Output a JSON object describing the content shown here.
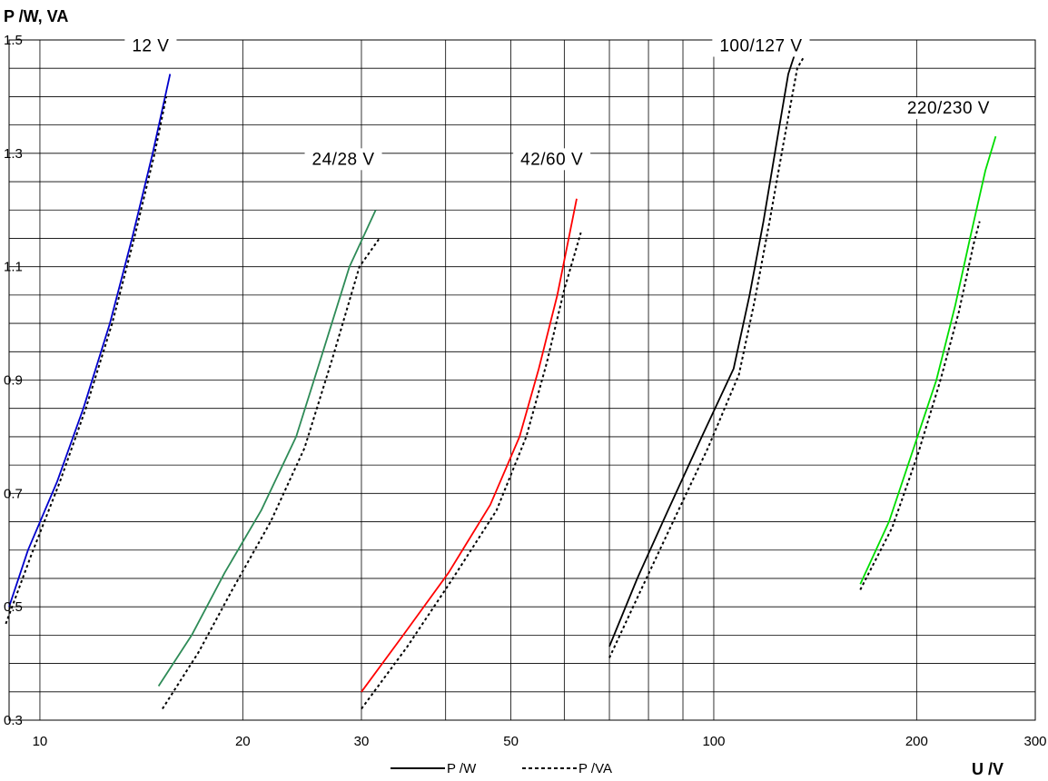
{
  "chart_data": {
    "type": "line",
    "xlabel": "U /V",
    "ylabel": "P /W, VA",
    "x_scale": "log",
    "xlim": [
      9,
      300
    ],
    "ylim": [
      0.3,
      1.5
    ],
    "x_ticks": [
      10,
      20,
      30,
      50,
      100,
      200,
      300
    ],
    "x_tick_labels": [
      "10",
      "20",
      "30",
      "50",
      "100",
      "200",
      "300"
    ],
    "x_minor_grid": [
      40,
      60,
      70,
      80,
      90
    ],
    "y_ticks": [
      0.3,
      0.5,
      0.7,
      0.9,
      1.1,
      1.3,
      1.5
    ],
    "y_tick_labels": [
      "0.3",
      "0.5",
      "0.7",
      "0.9",
      "1.1",
      "1.3",
      "1.5"
    ],
    "y_minor_step": 0.05,
    "grid": true,
    "legend": {
      "position": "bottom-center",
      "entries": [
        {
          "label": "P /W",
          "style": "solid"
        },
        {
          "label": "P /VA",
          "style": "dotted"
        }
      ]
    },
    "groups": [
      {
        "label": "12 V",
        "color": "#0000cc",
        "series": [
          {
            "quantity": "P /W",
            "style": "solid",
            "points": [
              [
                9.0,
                0.5
              ],
              [
                9.6,
                0.6
              ],
              [
                10.6,
                0.72
              ],
              [
                11.6,
                0.85
              ],
              [
                12.7,
                1.0
              ],
              [
                13.7,
                1.15
              ],
              [
                14.7,
                1.3
              ],
              [
                15.6,
                1.44
              ]
            ]
          },
          {
            "quantity": "P /VA",
            "style": "dotted",
            "points": [
              [
                8.9,
                0.47
              ],
              [
                9.7,
                0.59
              ],
              [
                10.7,
                0.72
              ],
              [
                11.7,
                0.85
              ],
              [
                12.8,
                1.0
              ],
              [
                13.8,
                1.15
              ],
              [
                14.8,
                1.3
              ],
              [
                15.4,
                1.4
              ]
            ]
          }
        ]
      },
      {
        "label": "24/28 V",
        "color": "#2e8b57",
        "series": [
          {
            "quantity": "P /W",
            "style": "solid",
            "points": [
              [
                15.0,
                0.36
              ],
              [
                16.8,
                0.45
              ],
              [
                18.8,
                0.56
              ],
              [
                21.3,
                0.67
              ],
              [
                24.0,
                0.8
              ],
              [
                26.3,
                0.95
              ],
              [
                28.8,
                1.1
              ],
              [
                31.5,
                1.2
              ]
            ]
          },
          {
            "quantity": "P /VA",
            "style": "dotted",
            "points": [
              [
                15.2,
                0.32
              ],
              [
                17.2,
                0.42
              ],
              [
                19.3,
                0.53
              ],
              [
                22.0,
                0.65
              ],
              [
                24.7,
                0.78
              ],
              [
                27.2,
                0.94
              ],
              [
                29.8,
                1.1
              ],
              [
                31.9,
                1.15
              ]
            ]
          }
        ]
      },
      {
        "label": "42/60 V",
        "color": "#ff0000",
        "series": [
          {
            "quantity": "P /W",
            "style": "solid",
            "points": [
              [
                30.0,
                0.35
              ],
              [
                34.6,
                0.45
              ],
              [
                40.4,
                0.56
              ],
              [
                46.6,
                0.68
              ],
              [
                51.5,
                0.8
              ],
              [
                55.0,
                0.92
              ],
              [
                58.6,
                1.05
              ],
              [
                62.6,
                1.22
              ]
            ]
          },
          {
            "quantity": "P /VA",
            "style": "dotted",
            "points": [
              [
                30.0,
                0.32
              ],
              [
                35.1,
                0.43
              ],
              [
                41.0,
                0.55
              ],
              [
                47.6,
                0.67
              ],
              [
                52.7,
                0.8
              ],
              [
                56.5,
                0.93
              ],
              [
                60.0,
                1.06
              ],
              [
                63.5,
                1.16
              ]
            ]
          }
        ]
      },
      {
        "label": "100/127 V",
        "color": "#000000",
        "series": [
          {
            "quantity": "P /W",
            "style": "solid",
            "points": [
              [
                70.0,
                0.43
              ],
              [
                77.0,
                0.55
              ],
              [
                85.5,
                0.67
              ],
              [
                96.0,
                0.8
              ],
              [
                107.0,
                0.92
              ],
              [
                113.0,
                1.05
              ],
              [
                118.5,
                1.18
              ],
              [
                124.0,
                1.32
              ],
              [
                129.0,
                1.44
              ],
              [
                134.0,
                1.5
              ]
            ]
          },
          {
            "quantity": "P /VA",
            "style": "dotted",
            "points": [
              [
                70.0,
                0.41
              ],
              [
                78.0,
                0.53
              ],
              [
                87.0,
                0.65
              ],
              [
                98.0,
                0.78
              ],
              [
                109.0,
                0.91
              ],
              [
                115.0,
                1.04
              ],
              [
                121.0,
                1.18
              ],
              [
                127.0,
                1.32
              ],
              [
                133.0,
                1.45
              ],
              [
                136.0,
                1.47
              ]
            ]
          }
        ]
      },
      {
        "label": "220/230 V",
        "color": "#00dd00",
        "series": [
          {
            "quantity": "P /W",
            "style": "solid",
            "points": [
              [
                165.0,
                0.54
              ],
              [
                182.0,
                0.65
              ],
              [
                198.0,
                0.78
              ],
              [
                214.0,
                0.9
              ],
              [
                228.0,
                1.03
              ],
              [
                240.0,
                1.15
              ],
              [
                253.0,
                1.27
              ],
              [
                262.0,
                1.33
              ]
            ]
          },
          {
            "quantity": "P /VA",
            "style": "dotted",
            "points": [
              [
                165.0,
                0.53
              ],
              [
                184.0,
                0.64
              ],
              [
                201.0,
                0.77
              ],
              [
                217.0,
                0.9
              ],
              [
                231.0,
                1.02
              ],
              [
                243.0,
                1.14
              ],
              [
                248.0,
                1.18
              ]
            ]
          }
        ]
      }
    ]
  }
}
